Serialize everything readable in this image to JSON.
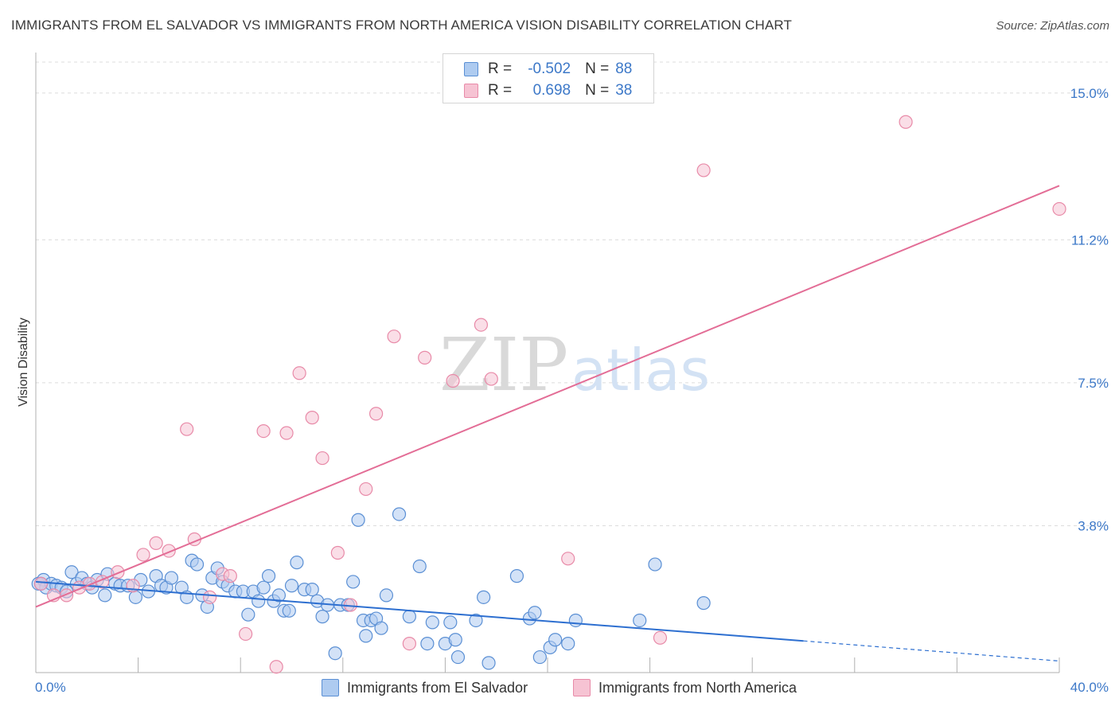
{
  "title": "IMMIGRANTS FROM EL SALVADOR VS IMMIGRANTS FROM NORTH AMERICA VISION DISABILITY CORRELATION CHART",
  "source": "Source: ZipAtlas.com",
  "watermark": {
    "zip": "ZIP",
    "atlas": "atlas"
  },
  "legend_top": {
    "rows": [
      {
        "r_label": "R =",
        "r_value": "-0.502",
        "n_label": "N =",
        "n_value": "88"
      },
      {
        "r_label": "R =",
        "r_value": "0.698",
        "n_label": "N =",
        "n_value": "38"
      }
    ]
  },
  "legend_bottom": [
    {
      "label": "Immigrants from El Salvador"
    },
    {
      "label": "Immigrants from North America"
    }
  ],
  "colors": {
    "blue_fill": "#aecbf0",
    "blue_stroke": "#5a8fd4",
    "blue_line": "#2d6fd0",
    "pink_fill": "#f6c3d3",
    "pink_stroke": "#e88aa8",
    "pink_line": "#e36d96",
    "grid": "#dcdcdc",
    "axis_text": "#3c78c8"
  },
  "chart_data": {
    "type": "scatter",
    "title": "IMMIGRANTS FROM EL SALVADOR VS IMMIGRANTS FROM NORTH AMERICA VISION DISABILITY CORRELATION CHART",
    "xlabel": "",
    "ylabel": "Vision Disability",
    "xlim": [
      0,
      40
    ],
    "ylim": [
      0,
      15.8
    ],
    "x_ticks": [
      "0.0%",
      "40.0%"
    ],
    "y_ticks": [
      {
        "value": 3.8,
        "label": "3.8%"
      },
      {
        "value": 7.5,
        "label": "7.5%"
      },
      {
        "value": 11.2,
        "label": "11.2%"
      },
      {
        "value": 15.0,
        "label": "15.0%"
      }
    ],
    "grid": true,
    "legend_position": "bottom",
    "series": [
      {
        "name": "Immigrants from El Salvador",
        "color": "#aecbf0",
        "r": -0.502,
        "n": 88,
        "trend": {
          "x0": 0,
          "y0": 2.35,
          "x1": 30,
          "y1": 0.82,
          "dashed_to_x": 40,
          "dashed_to_y": 0.3
        },
        "points": [
          [
            0.1,
            2.3
          ],
          [
            0.3,
            2.4
          ],
          [
            0.4,
            2.2
          ],
          [
            0.6,
            2.3
          ],
          [
            0.8,
            2.25
          ],
          [
            1.0,
            2.2
          ],
          [
            1.2,
            2.1
          ],
          [
            1.4,
            2.6
          ],
          [
            1.6,
            2.3
          ],
          [
            1.8,
            2.45
          ],
          [
            2.0,
            2.3
          ],
          [
            2.2,
            2.2
          ],
          [
            2.4,
            2.4
          ],
          [
            2.7,
            2.0
          ],
          [
            2.8,
            2.55
          ],
          [
            3.1,
            2.3
          ],
          [
            3.3,
            2.25
          ],
          [
            3.6,
            2.25
          ],
          [
            3.9,
            1.95
          ],
          [
            4.1,
            2.4
          ],
          [
            4.4,
            2.1
          ],
          [
            4.7,
            2.5
          ],
          [
            4.9,
            2.25
          ],
          [
            5.1,
            2.2
          ],
          [
            5.3,
            2.45
          ],
          [
            5.7,
            2.2
          ],
          [
            5.9,
            1.95
          ],
          [
            6.1,
            2.9
          ],
          [
            6.3,
            2.8
          ],
          [
            6.5,
            2.0
          ],
          [
            6.7,
            1.7
          ],
          [
            6.9,
            2.45
          ],
          [
            7.1,
            2.7
          ],
          [
            7.3,
            2.35
          ],
          [
            7.5,
            2.25
          ],
          [
            7.8,
            2.1
          ],
          [
            8.1,
            2.1
          ],
          [
            8.3,
            1.5
          ],
          [
            8.5,
            2.1
          ],
          [
            8.7,
            1.85
          ],
          [
            8.9,
            2.2
          ],
          [
            9.1,
            2.5
          ],
          [
            9.3,
            1.85
          ],
          [
            9.5,
            2.0
          ],
          [
            9.7,
            1.6
          ],
          [
            9.9,
            1.6
          ],
          [
            10.0,
            2.25
          ],
          [
            10.2,
            2.85
          ],
          [
            10.5,
            2.15
          ],
          [
            10.8,
            2.15
          ],
          [
            11.0,
            1.85
          ],
          [
            11.2,
            1.45
          ],
          [
            11.4,
            1.75
          ],
          [
            11.7,
            0.5
          ],
          [
            11.9,
            1.75
          ],
          [
            12.2,
            1.75
          ],
          [
            12.4,
            2.35
          ],
          [
            12.6,
            3.95
          ],
          [
            12.8,
            1.35
          ],
          [
            12.9,
            0.95
          ],
          [
            13.1,
            1.35
          ],
          [
            13.3,
            1.4
          ],
          [
            13.5,
            1.15
          ],
          [
            13.7,
            2.0
          ],
          [
            14.2,
            4.1
          ],
          [
            14.6,
            1.45
          ],
          [
            15.0,
            2.75
          ],
          [
            15.3,
            0.75
          ],
          [
            15.5,
            1.3
          ],
          [
            16.0,
            0.75
          ],
          [
            16.2,
            1.3
          ],
          [
            16.4,
            0.85
          ],
          [
            16.5,
            0.4
          ],
          [
            17.2,
            1.35
          ],
          [
            17.5,
            1.95
          ],
          [
            17.7,
            0.25
          ],
          [
            18.8,
            2.5
          ],
          [
            19.3,
            1.4
          ],
          [
            19.5,
            1.55
          ],
          [
            19.7,
            0.4
          ],
          [
            20.1,
            0.65
          ],
          [
            20.3,
            0.85
          ],
          [
            20.8,
            0.75
          ],
          [
            21.1,
            1.35
          ],
          [
            23.6,
            1.35
          ],
          [
            24.2,
            2.8
          ],
          [
            26.1,
            1.8
          ],
          [
            0.2,
            2.3
          ]
        ]
      },
      {
        "name": "Immigrants from North America",
        "color": "#f6c3d3",
        "r": 0.698,
        "n": 38,
        "trend": {
          "x0": 0,
          "y0": 1.7,
          "x1": 40,
          "y1": 12.6
        },
        "points": [
          [
            0.2,
            2.3
          ],
          [
            0.7,
            2.0
          ],
          [
            1.2,
            2.0
          ],
          [
            1.7,
            2.2
          ],
          [
            2.1,
            2.3
          ],
          [
            2.6,
            2.35
          ],
          [
            3.2,
            2.6
          ],
          [
            3.8,
            2.25
          ],
          [
            4.2,
            3.05
          ],
          [
            4.7,
            3.35
          ],
          [
            5.2,
            3.15
          ],
          [
            5.9,
            6.3
          ],
          [
            6.2,
            3.45
          ],
          [
            6.8,
            1.95
          ],
          [
            7.3,
            2.55
          ],
          [
            7.6,
            2.5
          ],
          [
            8.2,
            1.0
          ],
          [
            8.9,
            6.25
          ],
          [
            9.4,
            0.15
          ],
          [
            9.8,
            6.2
          ],
          [
            10.3,
            7.75
          ],
          [
            10.8,
            6.6
          ],
          [
            11.2,
            5.55
          ],
          [
            11.8,
            3.1
          ],
          [
            12.3,
            1.75
          ],
          [
            12.9,
            4.75
          ],
          [
            13.3,
            6.7
          ],
          [
            14.0,
            8.7
          ],
          [
            14.6,
            0.75
          ],
          [
            15.2,
            8.15
          ],
          [
            16.3,
            7.55
          ],
          [
            17.4,
            9.0
          ],
          [
            17.8,
            7.6
          ],
          [
            20.8,
            2.95
          ],
          [
            24.4,
            0.9
          ],
          [
            26.1,
            13.0
          ],
          [
            34.0,
            14.25
          ],
          [
            40.0,
            12.0
          ]
        ]
      }
    ]
  }
}
